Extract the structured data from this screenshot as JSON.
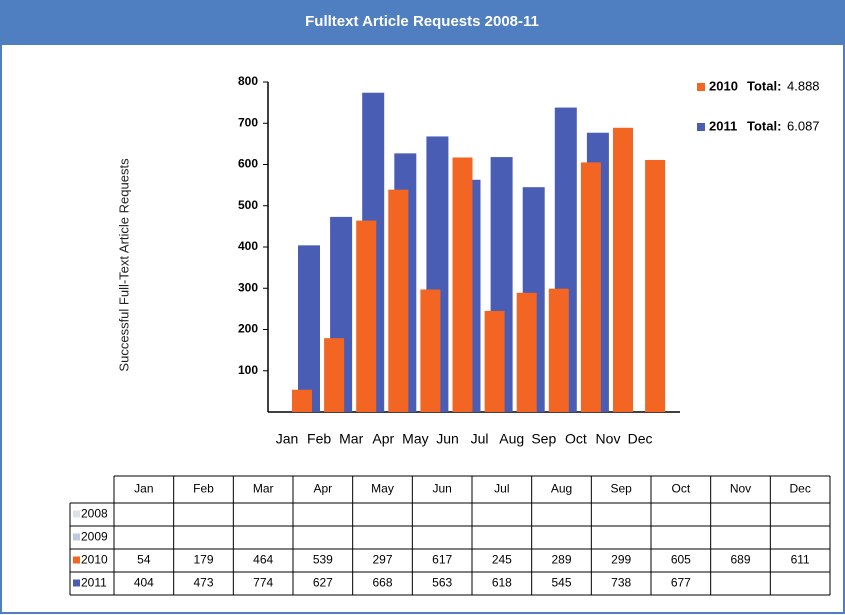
{
  "chart_data": {
    "type": "bar",
    "title": "Fulltext Article Requests 2008-11",
    "y_label": "Successful Full-Text Article Requests",
    "total_text": "Total:",
    "categories": [
      "Jan",
      "Feb",
      "Mar",
      "Apr",
      "May",
      "Jun",
      "Jul",
      "Aug",
      "Sep",
      "Oct",
      "Nov",
      "Dec"
    ],
    "ylim": [
      0,
      800
    ],
    "yticks": [
      100,
      200,
      300,
      400,
      500,
      600,
      700,
      800
    ],
    "grid": false,
    "series": [
      {
        "name": "2010",
        "color": "#f26522",
        "total_label": "4.888",
        "values": [
          54,
          179,
          464,
          539,
          297,
          617,
          245,
          289,
          299,
          605,
          689,
          611
        ]
      },
      {
        "name": "2011",
        "color": "#4a5db4",
        "total_label": "6.087",
        "values": [
          404,
          473,
          774,
          627,
          668,
          563,
          618,
          545,
          738,
          677,
          null,
          null
        ]
      }
    ]
  },
  "table": {
    "extra_rows": [
      {
        "name": "2008",
        "color": "#dde1ea"
      },
      {
        "name": "2009",
        "color": "#bccbe2"
      }
    ]
  }
}
